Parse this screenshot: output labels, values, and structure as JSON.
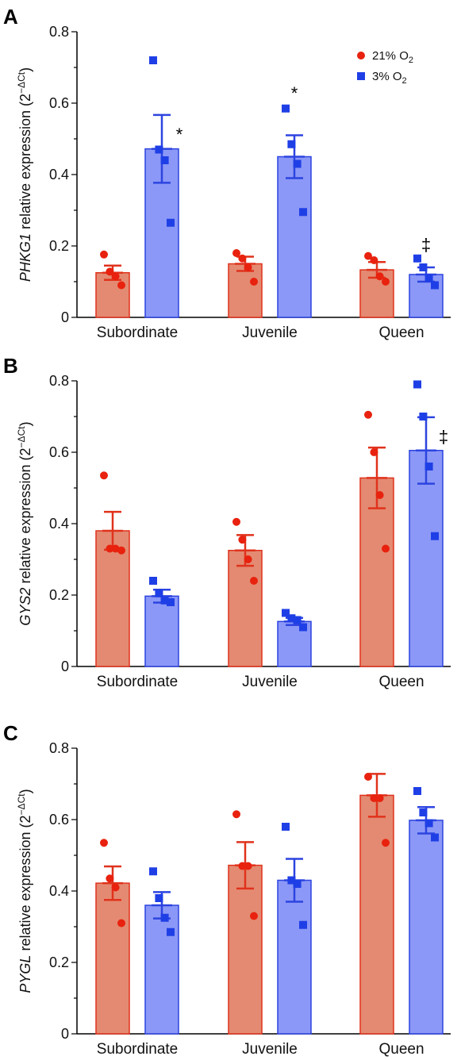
{
  "colors": {
    "normoxia_fill": "#e48a72",
    "normoxia_stroke": "#e0321c",
    "normoxia_point": "#e8220e",
    "hypoxia_fill": "#8b98f7",
    "hypoxia_stroke": "#2d44e0",
    "hypoxia_point": "#1f3fe6"
  },
  "legend": {
    "normoxia_label": "21% O",
    "normoxia_sub": "2",
    "hypoxia_label": "3% O",
    "hypoxia_sub": "2",
    "placement": "top-right of panel A"
  },
  "chart_data": [
    {
      "type": "bar",
      "panel": "A",
      "ylabel_gene": "PHKG1",
      "ylabel_rest": " relative expression (2",
      "ylabel_sup": "−ΔCt",
      "ylabel_close": ")",
      "ylim": [
        0,
        0.8
      ],
      "yticks": [
        "0",
        "0.2",
        "0.4",
        "0.6",
        "0.8"
      ],
      "categories": [
        "Subordinate",
        "Juvenile",
        "Queen"
      ],
      "series": [
        {
          "name": "21% O2",
          "values": [
            0.125,
            0.15,
            0.133
          ],
          "errors": [
            0.02,
            0.02,
            0.022
          ],
          "points": [
            [
              0.176,
              0.128,
              0.115,
              0.09
            ],
            [
              0.18,
              0.165,
              0.14,
              0.1
            ],
            [
              0.172,
              0.16,
              0.115,
              0.1
            ]
          ],
          "annotations": [
            "",
            "",
            ""
          ]
        },
        {
          "name": "3% O2",
          "values": [
            0.472,
            0.45,
            0.12
          ],
          "errors": [
            0.095,
            0.06,
            0.02
          ],
          "points": [
            [
              0.72,
              0.47,
              0.44,
              0.265
            ],
            [
              0.585,
              0.485,
              0.43,
              0.295
            ],
            [
              0.165,
              0.14,
              0.11,
              0.09
            ]
          ],
          "annotations": [
            "*",
            "*",
            "‡"
          ]
        }
      ]
    },
    {
      "type": "bar",
      "panel": "B",
      "ylabel_gene": "GYS2",
      "ylabel_rest": " relative expression (2",
      "ylabel_sup": "−ΔCt",
      "ylabel_close": ")",
      "ylim": [
        0,
        0.8
      ],
      "yticks": [
        "0",
        "0.2",
        "0.4",
        "0.6",
        "0.8"
      ],
      "categories": [
        "Subordinate",
        "Juvenile",
        "Queen"
      ],
      "series": [
        {
          "name": "21% O2",
          "values": [
            0.38,
            0.325,
            0.528
          ],
          "errors": [
            0.053,
            0.043,
            0.085
          ],
          "points": [
            [
              0.535,
              0.33,
              0.33,
              0.325
            ],
            [
              0.405,
              0.355,
              0.3,
              0.24
            ],
            [
              0.705,
              0.6,
              0.48,
              0.33
            ]
          ],
          "annotations": [
            "",
            "",
            ""
          ]
        },
        {
          "name": "3% O2",
          "values": [
            0.197,
            0.126,
            0.605
          ],
          "errors": [
            0.018,
            0.01,
            0.093
          ],
          "points": [
            [
              0.24,
              0.205,
              0.185,
              0.18
            ],
            [
              0.15,
              0.135,
              0.13,
              0.11
            ],
            [
              0.79,
              0.7,
              0.56,
              0.365
            ]
          ],
          "annotations": [
            "",
            "",
            "‡"
          ]
        }
      ]
    },
    {
      "type": "bar",
      "panel": "C",
      "ylabel_gene": "PYGL",
      "ylabel_rest": " relative expression (2",
      "ylabel_sup": "−ΔCt",
      "ylabel_close": ")",
      "ylim": [
        0,
        0.8
      ],
      "yticks": [
        "0",
        "0.2",
        "0.4",
        "0.6",
        "0.8"
      ],
      "categories": [
        "Subordinate",
        "Juvenile",
        "Queen"
      ],
      "series": [
        {
          "name": "21% O2",
          "values": [
            0.422,
            0.472,
            0.668
          ],
          "errors": [
            0.047,
            0.065,
            0.06
          ],
          "points": [
            [
              0.535,
              0.435,
              0.41,
              0.31
            ],
            [
              0.615,
              0.47,
              0.47,
              0.33
            ],
            [
              0.72,
              0.66,
              0.66,
              0.535
            ]
          ],
          "annotations": [
            "",
            "",
            ""
          ]
        },
        {
          "name": "3% O2",
          "values": [
            0.36,
            0.43,
            0.598
          ],
          "errors": [
            0.037,
            0.06,
            0.037
          ],
          "points": [
            [
              0.455,
              0.38,
              0.325,
              0.285
            ],
            [
              0.58,
              0.43,
              0.42,
              0.305
            ],
            [
              0.68,
              0.62,
              0.59,
              0.55
            ]
          ],
          "annotations": [
            "",
            "",
            ""
          ]
        }
      ]
    }
  ]
}
